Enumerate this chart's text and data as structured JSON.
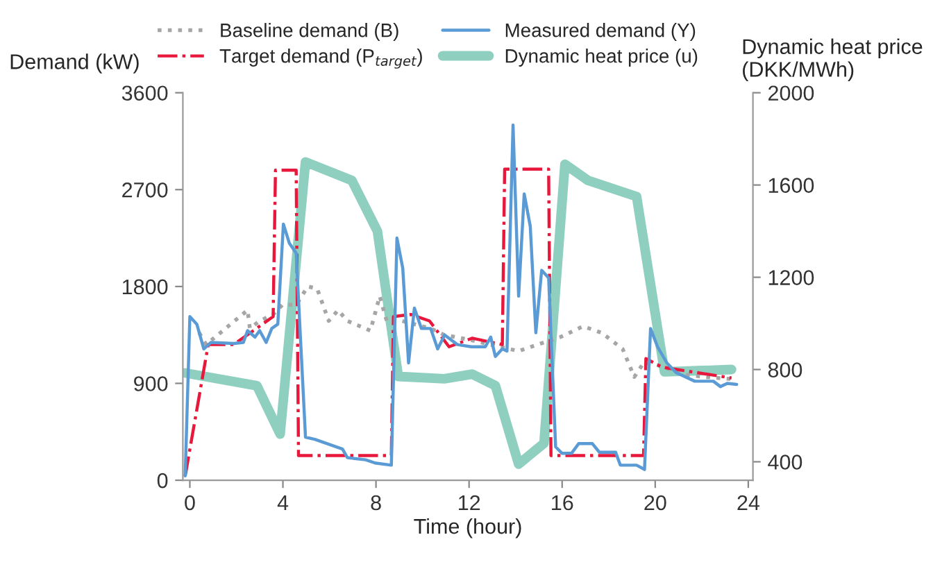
{
  "chart_data": {
    "type": "line",
    "xlabel": "Time (hour)",
    "ylabel": "Demand (kW)",
    "y2label": "Dynamic heat price\n(DKK/MWh)",
    "xlim": [
      -0.3,
      24.2
    ],
    "xticks": [
      0,
      4,
      8,
      12,
      16,
      20,
      24
    ],
    "ylim": [
      0,
      3600
    ],
    "yticks": [
      0,
      900,
      1800,
      2700,
      3600
    ],
    "y2lim": [
      320,
      2000
    ],
    "y2ticks": [
      400,
      800,
      1200,
      1600,
      2000
    ],
    "grid": false,
    "legend": "top",
    "series": [
      {
        "name": "Baseline demand (B)",
        "color": "#a6a6a6",
        "line_style": "dotted",
        "x": [
          0.4,
          0.7,
          2.48,
          2.58,
          3.0,
          3.58,
          3.98,
          4.57,
          5.07,
          5.47,
          5.97,
          6.37,
          6.77,
          7.76,
          8.16,
          8.46,
          8.76,
          10.35,
          10.94,
          12.14,
          13.33,
          14.13,
          14.93,
          15.92,
          16.9,
          17.7,
          18.6,
          19.1,
          19.5,
          20.1,
          21.3,
          22.1,
          23.3
        ],
        "values": [
          1370,
          1260,
          1580,
          1410,
          1480,
          1540,
          1630,
          1630,
          1800,
          1780,
          1480,
          1580,
          1480,
          1390,
          1710,
          1480,
          1500,
          1410,
          1350,
          1300,
          1240,
          1200,
          1260,
          1330,
          1430,
          1370,
          1220,
          960,
          1090,
          1070,
          980,
          960,
          940
        ]
      },
      {
        "name": "Target demand (P$_{target}$)",
        "color": "#e8173c",
        "line_style": "dashdot",
        "x": [
          -0.2,
          0.79,
          1.88,
          3.58,
          3.68,
          4.57,
          4.67,
          8.66,
          8.75,
          9.5,
          10.3,
          11.14,
          12.14,
          13.43,
          13.53,
          15.42,
          15.52,
          19.5,
          19.6,
          20.3,
          23.28
        ],
        "values": [
          40,
          1260,
          1260,
          1520,
          2880,
          2880,
          230,
          230,
          1520,
          1540,
          1480,
          1240,
          1320,
          1260,
          2890,
          2890,
          230,
          230,
          1130,
          1050,
          950
        ]
      },
      {
        "name": "Measured demand (Y)",
        "color": "#5b9bd5",
        "line_style": "solid",
        "x": [
          -0.2,
          0.0,
          0.3,
          0.6,
          0.9,
          1.9,
          2.3,
          2.48,
          2.8,
          3.0,
          3.28,
          3.52,
          3.78,
          4.02,
          4.28,
          4.57,
          4.97,
          5.37,
          6.56,
          6.77,
          7.56,
          7.96,
          8.66,
          8.9,
          9.15,
          9.4,
          9.65,
          9.95,
          10.35,
          10.65,
          10.95,
          11.5,
          12.1,
          12.7,
          12.93,
          13.13,
          13.43,
          13.63,
          13.89,
          14.13,
          14.37,
          14.63,
          14.87,
          15.12,
          15.42,
          15.72,
          16.0,
          16.4,
          16.71,
          17.3,
          17.6,
          18.3,
          18.5,
          19.2,
          19.54,
          19.8,
          20.1,
          20.5,
          20.9,
          21.7,
          22.5,
          22.8,
          23.1,
          23.5
        ],
        "values": [
          40,
          1520,
          1450,
          1220,
          1280,
          1270,
          1280,
          1390,
          1330,
          1390,
          1280,
          1410,
          1450,
          2380,
          2200,
          2110,
          400,
          380,
          290,
          210,
          190,
          160,
          140,
          2250,
          1970,
          1090,
          1600,
          1410,
          1410,
          1220,
          1350,
          1260,
          1240,
          1240,
          1330,
          1150,
          1220,
          1200,
          3300,
          1710,
          2660,
          2360,
          1370,
          1950,
          1880,
          310,
          250,
          250,
          340,
          340,
          260,
          260,
          140,
          140,
          100,
          1410,
          1240,
          1090,
          1000,
          920,
          920,
          870,
          900,
          890
        ]
      },
      {
        "name": "Dynamic heat price (u)",
        "color": "#8fcfbf",
        "line_style": "solid",
        "axis": "y2",
        "x": [
          -0.2,
          2.88,
          3.88,
          4.97,
          6.96,
          8.06,
          8.96,
          10.94,
          12.14,
          13.13,
          14.13,
          15.22,
          16.12,
          17.11,
          19.2,
          20.4,
          23.28
        ],
        "values": [
          785,
          730,
          520,
          1700,
          1620,
          1400,
          770,
          760,
          780,
          730,
          390,
          480,
          1690,
          1620,
          1550,
          790,
          800
        ]
      }
    ]
  }
}
